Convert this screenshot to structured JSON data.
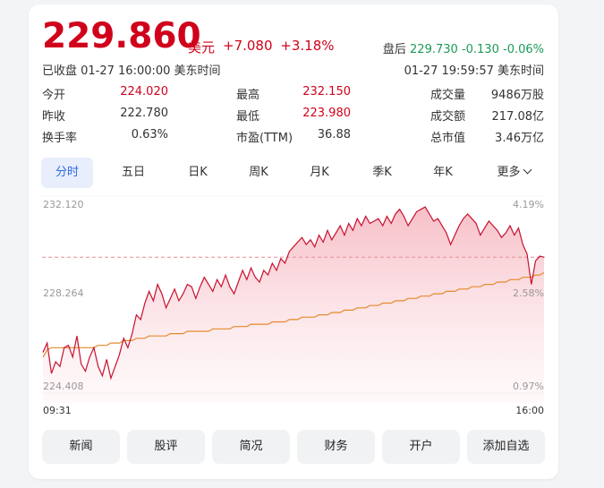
{
  "quote": {
    "price": "229.860",
    "currency": "美元",
    "change": "+7.080",
    "change_pct": "+3.18%",
    "status": "已收盘 01-27 16:00:00 美东时间",
    "after_hours_label": "盘后",
    "after_hours_price": "229.730",
    "after_hours_change": "-0.130",
    "after_hours_pct": "-0.06%",
    "after_hours_time": "01-27 19:59:57 美东时间"
  },
  "stats": [
    {
      "label": "今开",
      "value": "224.020",
      "color": "#d0021b"
    },
    {
      "label": "最高",
      "value": "232.150",
      "color": "#d0021b"
    },
    {
      "label": "成交量",
      "value": "9486万股",
      "color": "#333333"
    },
    {
      "label": "昨收",
      "value": "222.780",
      "color": "#333333"
    },
    {
      "label": "最低",
      "value": "223.980",
      "color": "#d0021b"
    },
    {
      "label": "成交额",
      "value": "217.08亿",
      "color": "#333333"
    },
    {
      "label": "换手率",
      "value": "0.63%",
      "color": "#333333"
    },
    {
      "label": "市盈(TTM)",
      "value": "36.88",
      "color": "#333333"
    },
    {
      "label": "总市值",
      "value": "3.46万亿",
      "color": "#333333"
    }
  ],
  "tabs": [
    "分时",
    "五日",
    "日K",
    "周K",
    "月K",
    "季K",
    "年K",
    "更多"
  ],
  "active_tab": 0,
  "chart_data": {
    "type": "line",
    "y_ticks": [
      "232.120",
      "228.264",
      "224.408"
    ],
    "pct_ticks": [
      "4.19%",
      "2.58%",
      "0.97%"
    ],
    "x_ticks": [
      "09:31",
      "16:00"
    ],
    "ylim": [
      224.408,
      232.12
    ],
    "prev_close": 222.78,
    "reference_line": 229.86,
    "colors": {
      "price": "#c8102e",
      "avg": "#e58a2b",
      "fill": "#f7c6cc"
    },
    "series": [
      {
        "values": [
          225.8,
          226.2,
          224.9,
          225.4,
          225.2,
          226.0,
          226.1,
          225.6,
          226.5,
          225.3,
          225.0,
          225.6,
          226.0,
          225.2,
          224.8,
          225.5,
          224.7,
          225.2,
          225.7,
          226.4,
          226.0,
          226.6,
          227.4,
          227.2,
          227.9,
          228.4,
          228.0,
          228.7,
          228.3,
          227.7,
          228.1,
          228.5,
          228.0,
          228.3,
          228.7,
          228.6,
          228.1,
          228.6,
          229.0,
          228.7,
          228.4,
          228.9,
          228.6,
          229.1,
          228.6,
          228.3,
          228.8,
          229.3,
          228.9,
          229.4,
          229.0,
          228.8,
          229.3,
          229.1,
          229.6,
          229.3,
          229.8,
          229.6,
          230.1,
          230.3,
          230.5,
          230.7,
          230.4,
          230.6,
          230.3,
          230.8,
          230.5,
          231.0,
          230.6,
          230.9,
          231.2,
          230.8,
          231.3,
          231.0,
          231.5,
          231.2,
          231.6,
          231.3,
          231.4,
          231.5,
          231.2,
          231.6,
          231.3,
          231.7,
          231.9,
          231.6,
          231.2,
          231.5,
          231.8,
          231.9,
          232.0,
          231.7,
          231.4,
          231.5,
          231.2,
          230.9,
          230.4,
          230.8,
          231.2,
          231.5,
          231.7,
          231.5,
          231.3,
          230.8,
          231.1,
          231.4,
          231.2,
          231.0,
          230.7,
          230.9,
          231.2,
          230.8,
          231.1,
          230.4,
          230.0,
          228.7,
          229.7,
          229.9,
          229.86
        ],
        "avg_values": [
          225.6,
          225.9,
          226.0,
          226.0,
          226.0,
          226.0,
          226.0,
          226.0,
          226.0,
          226.0,
          226.0,
          226.0,
          226.0,
          226.1,
          226.1,
          226.1,
          226.2,
          226.2,
          226.2,
          226.3,
          226.3,
          226.3,
          226.4,
          226.4,
          226.4,
          226.5,
          226.5,
          226.5,
          226.5,
          226.5,
          226.6,
          226.6,
          226.6,
          226.6,
          226.7,
          226.7,
          226.7,
          226.7,
          226.7,
          226.7,
          226.8,
          226.8,
          226.8,
          226.8,
          226.8,
          226.9,
          226.9,
          226.9,
          226.9,
          227.0,
          227.0,
          227.0,
          227.0,
          227.0,
          227.1,
          227.1,
          227.1,
          227.1,
          227.2,
          227.2,
          227.2,
          227.3,
          227.3,
          227.3,
          227.3,
          227.4,
          227.4,
          227.4,
          227.5,
          227.5,
          227.5,
          227.6,
          227.6,
          227.6,
          227.7,
          227.7,
          227.7,
          227.8,
          227.8,
          227.8,
          227.9,
          227.9,
          227.9,
          228.0,
          228.0,
          228.0,
          228.1,
          228.1,
          228.1,
          228.2,
          228.2,
          228.2,
          228.3,
          228.3,
          228.3,
          228.4,
          228.4,
          228.4,
          228.5,
          228.5,
          228.5,
          228.6,
          228.6,
          228.6,
          228.7,
          228.7,
          228.7,
          228.8,
          228.8,
          228.8,
          228.9,
          228.9,
          228.9,
          229.0,
          229.0,
          229.0,
          229.1,
          229.1,
          229.2
        ]
      }
    ]
  },
  "actions": [
    "新闻",
    "股评",
    "简况",
    "财务",
    "开户",
    "添加自选"
  ]
}
